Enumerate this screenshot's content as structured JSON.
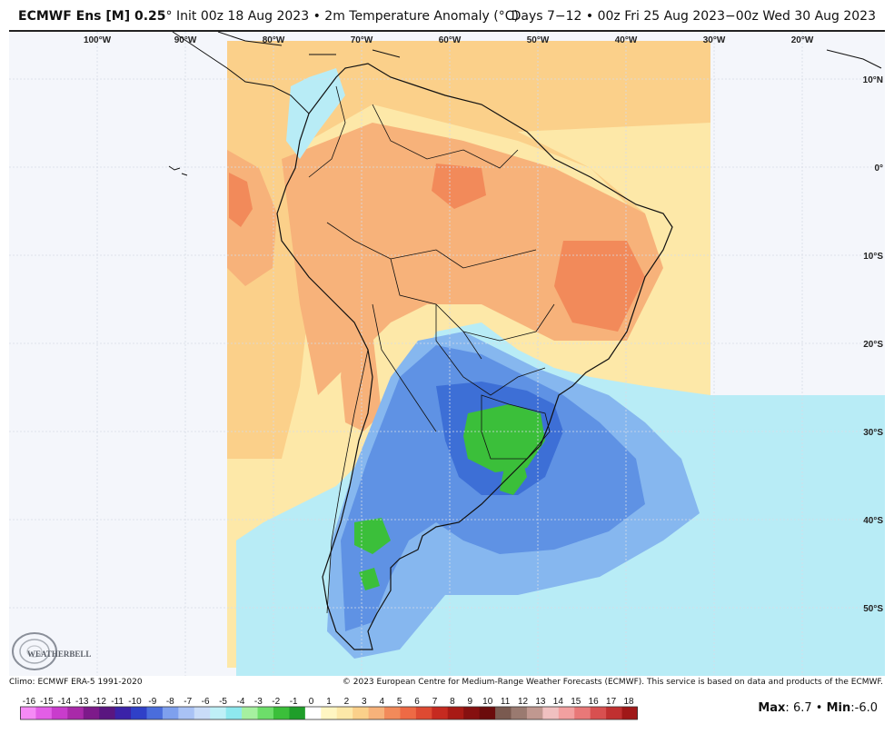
{
  "header": {
    "model": "ECMWF Ens [M] 0.25",
    "degree": "°",
    "init": "Init 00z 18 Aug 2023",
    "bullet": "•",
    "field": "2m Temperature Anomaly (°C)",
    "valid": "Days 7−12 • 00z Fri 25 Aug 2023−00z Wed 30 Aug 2023"
  },
  "map": {
    "lon_labels": [
      "100°W",
      "90°W",
      "80°W",
      "70°W",
      "60°W",
      "50°W",
      "40°W",
      "30°W",
      "20°W"
    ],
    "lat_labels": [
      "10°N",
      "0°",
      "10°S",
      "20°S",
      "30°S",
      "40°S",
      "50°S"
    ],
    "logo_text": "WEATHERBELL",
    "colors": {
      "ocean": "#f4f6fb",
      "warm_light": "#fde8a8",
      "warm_mid": "#fbd08a",
      "warm": "#f7b27a",
      "warm_strong": "#f28a5a",
      "cool_light": "#b8ecf6",
      "cool": "#86b7ef",
      "cool_mid": "#5f92e4",
      "cool_strong": "#3d6fd6",
      "green": "#3bbf3a"
    }
  },
  "footer": {
    "climo": "Climo: ECMWF ERA-5 1991-2020",
    "copyright": "© 2023 European Centre for Medium-Range Weather Forecasts (ECMWF). This service is based on data and products of the ECMWF."
  },
  "colorbar": {
    "labels": [
      "-16",
      "-15",
      "-14",
      "-13",
      "-12",
      "-11",
      "-10",
      "-9",
      "-8",
      "-7",
      "-6",
      "-5",
      "-4",
      "-3",
      "-2",
      "-1",
      "0",
      "1",
      "2",
      "3",
      "4",
      "5",
      "6",
      "7",
      "8",
      "9",
      "10",
      "11",
      "12",
      "13",
      "14",
      "15",
      "16",
      "17",
      "18"
    ],
    "colors": [
      "#f58af5",
      "#e25ee6",
      "#c93ccc",
      "#a92aa9",
      "#7d1a8a",
      "#5a1680",
      "#3b22a8",
      "#2f40c8",
      "#4a6ddc",
      "#7ea0ee",
      "#a9c2f5",
      "#c9dcf8",
      "#bff0f7",
      "#8ee8ee",
      "#a6f0a0",
      "#6dde6a",
      "#3bbf3a",
      "#1f9e2a",
      "#ffffff",
      "#fff6c2",
      "#fde8a8",
      "#fbd08a",
      "#f7b27a",
      "#f28a5a",
      "#ee6a45",
      "#de4a32",
      "#c62a20",
      "#a81a15",
      "#861010",
      "#6b0c0c",
      "#7a5a50",
      "#9a7a70",
      "#c09890",
      "#f0c0c0",
      "#f2a0a0",
      "#e87878",
      "#d85050",
      "#c03030",
      "#a01818"
    ]
  },
  "stats": {
    "max_label": "Max",
    "max_value": "6.7",
    "min_label": "Min",
    "min_value": "-6.0",
    "sep": "•"
  }
}
